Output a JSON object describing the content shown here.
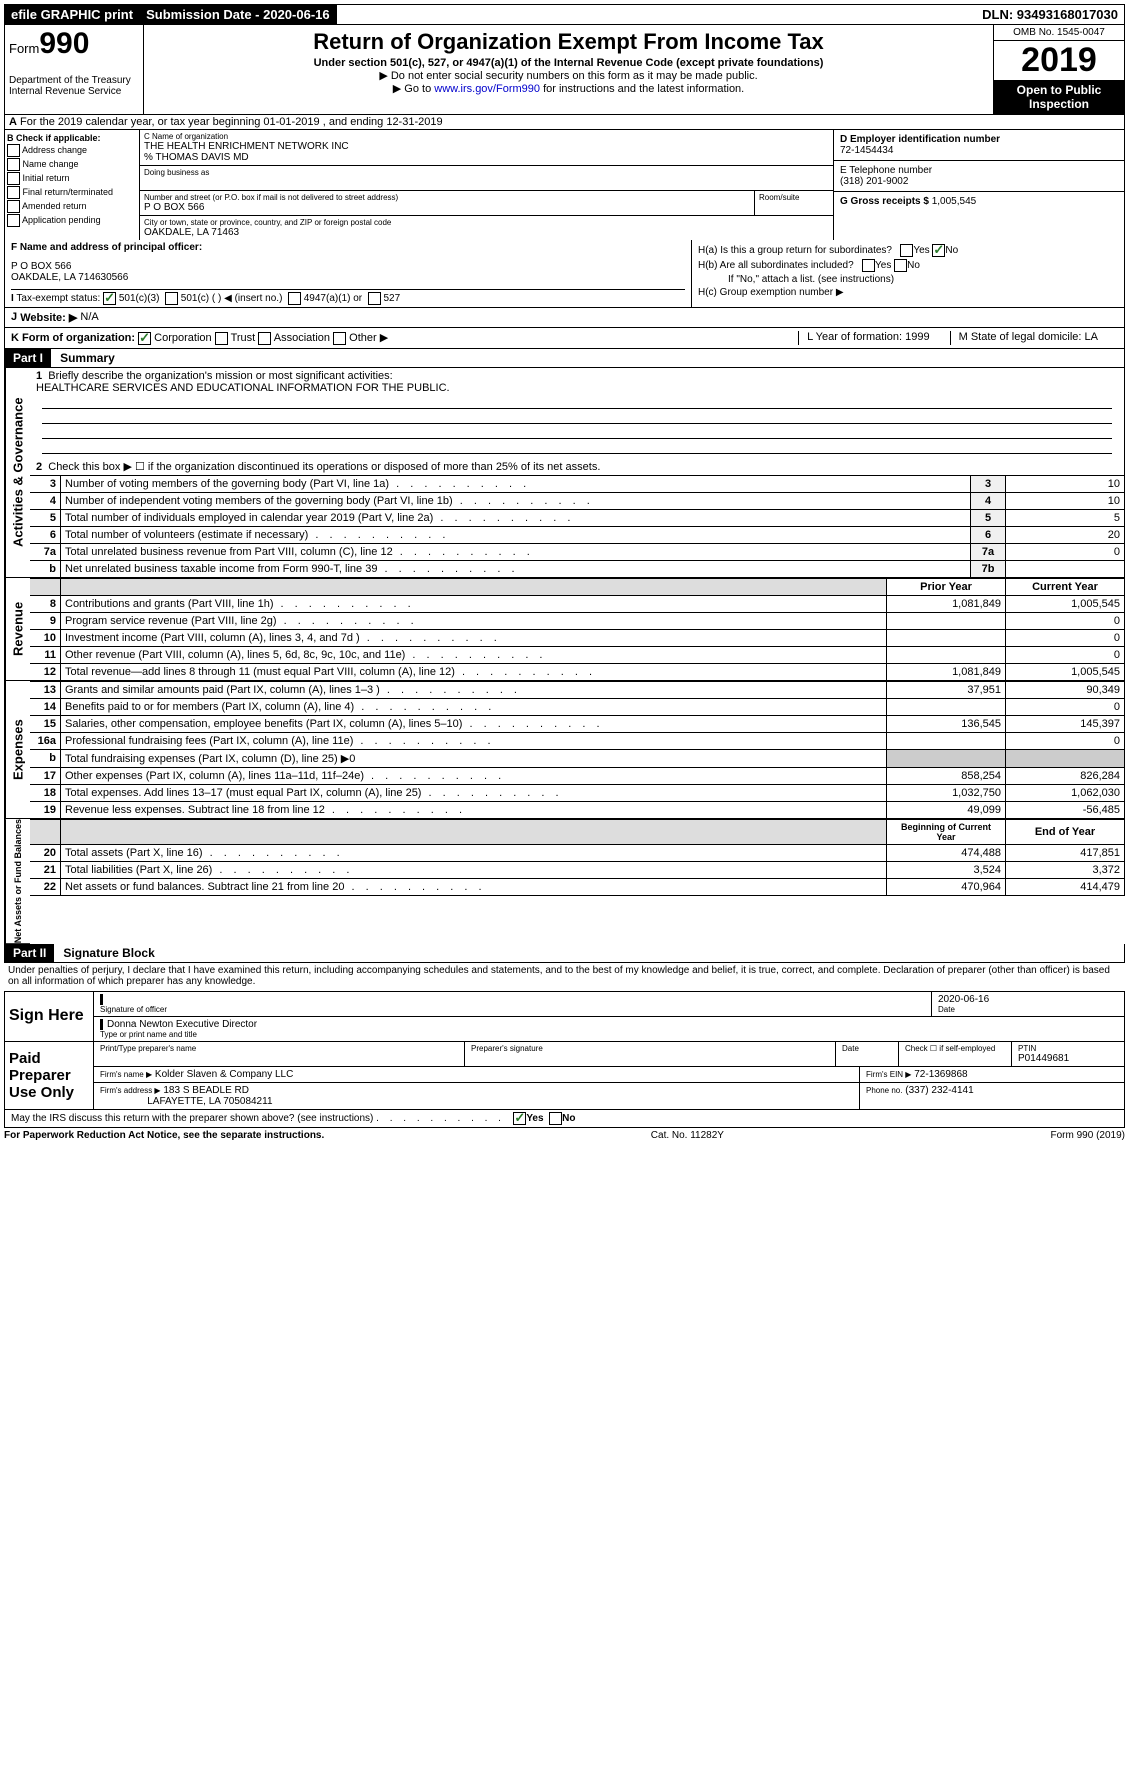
{
  "topbar": {
    "efile": "efile GRAPHIC print",
    "subdate_label": "Submission Date - ",
    "subdate": "2020-06-16",
    "dln": "DLN: 93493168017030"
  },
  "header": {
    "form_prefix": "Form",
    "form_no": "990",
    "dept": "Department of the Treasury\nInternal Revenue Service",
    "title": "Return of Organization Exempt From Income Tax",
    "sub": "Under section 501(c), 527, or 4947(a)(1) of the Internal Revenue Code (except private foundations)",
    "note1": "▶ Do not enter social security numbers on this form as it may be made public.",
    "note2_pre": "▶ Go to ",
    "note2_link": "www.irs.gov/Form990",
    "note2_post": " for instructions and the latest information.",
    "omb": "OMB No. 1545-0047",
    "year": "2019",
    "open": "Open to Public Inspection"
  },
  "rowA": "For the 2019 calendar year, or tax year beginning 01-01-2019   , and ending 12-31-2019",
  "boxB": {
    "title": "B Check if applicable:",
    "items": [
      "Address change",
      "Name change",
      "Initial return",
      "Final return/terminated",
      "Amended return",
      "Application pending"
    ]
  },
  "boxC": {
    "name_label": "C Name of organization",
    "name": "THE HEALTH ENRICHMENT NETWORK INC",
    "care": "% THOMAS DAVIS MD",
    "dba_label": "Doing business as",
    "addr_label": "Number and street (or P.O. box if mail is not delivered to street address)",
    "room_label": "Room/suite",
    "addr": "P O BOX 566",
    "city_label": "City or town, state or province, country, and ZIP or foreign postal code",
    "city": "OAKDALE, LA  71463"
  },
  "boxD": {
    "label": "D Employer identification number",
    "val": "72-1454434"
  },
  "boxE": {
    "label": "E Telephone number",
    "val": "(318) 201-9002"
  },
  "boxG": {
    "label": "G Gross receipts $",
    "val": "1,005,545"
  },
  "boxF": {
    "label": "F Name and address of principal officer:",
    "line1": "P O BOX 566",
    "line2": "OAKDALE, LA  714630566"
  },
  "boxH": {
    "a": "H(a)  Is this a group return for subordinates?",
    "b": "H(b)  Are all subordinates included?",
    "b_note": "If \"No,\" attach a list. (see instructions)",
    "c": "H(c)  Group exemption number ▶"
  },
  "rowI": {
    "label": "Tax-exempt status:",
    "o1": "501(c)(3)",
    "o2": "501(c) (  ) ◀ (insert no.)",
    "o3": "4947(a)(1) or",
    "o4": "527"
  },
  "rowJ": {
    "label": "Website: ▶",
    "val": "N/A"
  },
  "rowK": {
    "label": "K Form of organization:",
    "o1": "Corporation",
    "o2": "Trust",
    "o3": "Association",
    "o4": "Other ▶",
    "L": "L Year of formation: 1999",
    "M": "M State of legal domicile: LA"
  },
  "part1": {
    "hdr": "Part I",
    "title": "Summary",
    "line1": "Briefly describe the organization's mission or most significant activities:",
    "mission": "HEALTHCARE SERVICES AND EDUCATIONAL INFORMATION FOR THE PUBLIC.",
    "line2": "Check this box ▶ ☐  if the organization discontinued its operations or disposed of more than 25% of its net assets.",
    "sides": {
      "gov": "Activities & Governance",
      "rev": "Revenue",
      "exp": "Expenses",
      "net": "Net Assets or Fund Balances"
    },
    "hdr_prior": "Prior Year",
    "hdr_curr": "Current Year",
    "hdr_begin": "Beginning of Current Year",
    "hdr_end": "End of Year",
    "rows_single": [
      {
        "n": "3",
        "d": "Number of voting members of the governing body (Part VI, line 1a)",
        "b": "3",
        "v": "10"
      },
      {
        "n": "4",
        "d": "Number of independent voting members of the governing body (Part VI, line 1b)",
        "b": "4",
        "v": "10"
      },
      {
        "n": "5",
        "d": "Total number of individuals employed in calendar year 2019 (Part V, line 2a)",
        "b": "5",
        "v": "5"
      },
      {
        "n": "6",
        "d": "Total number of volunteers (estimate if necessary)",
        "b": "6",
        "v": "20"
      },
      {
        "n": "7a",
        "d": "Total unrelated business revenue from Part VIII, column (C), line 12",
        "b": "7a",
        "v": "0"
      },
      {
        "n": "b",
        "d": "Net unrelated business taxable income from Form 990-T, line 39",
        "b": "7b",
        "v": ""
      }
    ],
    "rows_rev": [
      {
        "n": "8",
        "d": "Contributions and grants (Part VIII, line 1h)",
        "p": "1,081,849",
        "c": "1,005,545"
      },
      {
        "n": "9",
        "d": "Program service revenue (Part VIII, line 2g)",
        "p": "",
        "c": "0"
      },
      {
        "n": "10",
        "d": "Investment income (Part VIII, column (A), lines 3, 4, and 7d )",
        "p": "",
        "c": "0"
      },
      {
        "n": "11",
        "d": "Other revenue (Part VIII, column (A), lines 5, 6d, 8c, 9c, 10c, and 11e)",
        "p": "",
        "c": "0"
      },
      {
        "n": "12",
        "d": "Total revenue—add lines 8 through 11 (must equal Part VIII, column (A), line 12)",
        "p": "1,081,849",
        "c": "1,005,545"
      }
    ],
    "rows_exp": [
      {
        "n": "13",
        "d": "Grants and similar amounts paid (Part IX, column (A), lines 1–3 )",
        "p": "37,951",
        "c": "90,349"
      },
      {
        "n": "14",
        "d": "Benefits paid to or for members (Part IX, column (A), line 4)",
        "p": "",
        "c": "0"
      },
      {
        "n": "15",
        "d": "Salaries, other compensation, employee benefits (Part IX, column (A), lines 5–10)",
        "p": "136,545",
        "c": "145,397"
      },
      {
        "n": "16a",
        "d": "Professional fundraising fees (Part IX, column (A), line 11e)",
        "p": "",
        "c": "0"
      },
      {
        "n": "b",
        "d": "Total fundraising expenses (Part IX, column (D), line 25) ▶0",
        "p": "—",
        "c": "—"
      },
      {
        "n": "17",
        "d": "Other expenses (Part IX, column (A), lines 11a–11d, 11f–24e)",
        "p": "858,254",
        "c": "826,284"
      },
      {
        "n": "18",
        "d": "Total expenses. Add lines 13–17 (must equal Part IX, column (A), line 25)",
        "p": "1,032,750",
        "c": "1,062,030"
      },
      {
        "n": "19",
        "d": "Revenue less expenses. Subtract line 18 from line 12",
        "p": "49,099",
        "c": "-56,485"
      }
    ],
    "rows_net": [
      {
        "n": "20",
        "d": "Total assets (Part X, line 16)",
        "p": "474,488",
        "c": "417,851"
      },
      {
        "n": "21",
        "d": "Total liabilities (Part X, line 26)",
        "p": "3,524",
        "c": "3,372"
      },
      {
        "n": "22",
        "d": "Net assets or fund balances. Subtract line 21 from line 20",
        "p": "470,964",
        "c": "414,479"
      }
    ]
  },
  "part2": {
    "hdr": "Part II",
    "title": "Signature Block",
    "perjury": "Under penalties of perjury, I declare that I have examined this return, including accompanying schedules and statements, and to the best of my knowledge and belief, it is true, correct, and complete. Declaration of preparer (other than officer) is based on all information of which preparer has any knowledge."
  },
  "sign": {
    "here": "Sign Here",
    "sig_label": "Signature of officer",
    "date_label": "Date",
    "date": "2020-06-16",
    "name": "Donna Newton Executive Director",
    "name_label": "Type or print name and title"
  },
  "paid": {
    "label": "Paid Preparer Use Only",
    "c1": "Print/Type preparer's name",
    "c2": "Preparer's signature",
    "c3": "Date",
    "c4a": "Check ☐ if self-employed",
    "c5": "PTIN",
    "ptin": "P01449681",
    "firm_label": "Firm's name    ▶",
    "firm": "Kolder Slaven & Company LLC",
    "ein_label": "Firm's EIN ▶",
    "ein": "72-1369868",
    "addr_label": "Firm's address ▶",
    "addr1": "183 S BEADLE RD",
    "addr2": "LAFAYETTE, LA  705084211",
    "phone_label": "Phone no.",
    "phone": "(337) 232-4141"
  },
  "discuss": "May the IRS discuss this return with the preparer shown above? (see instructions)",
  "footer": {
    "left": "For Paperwork Reduction Act Notice, see the separate instructions.",
    "mid": "Cat. No. 11282Y",
    "right": "Form 990 (2019)"
  }
}
